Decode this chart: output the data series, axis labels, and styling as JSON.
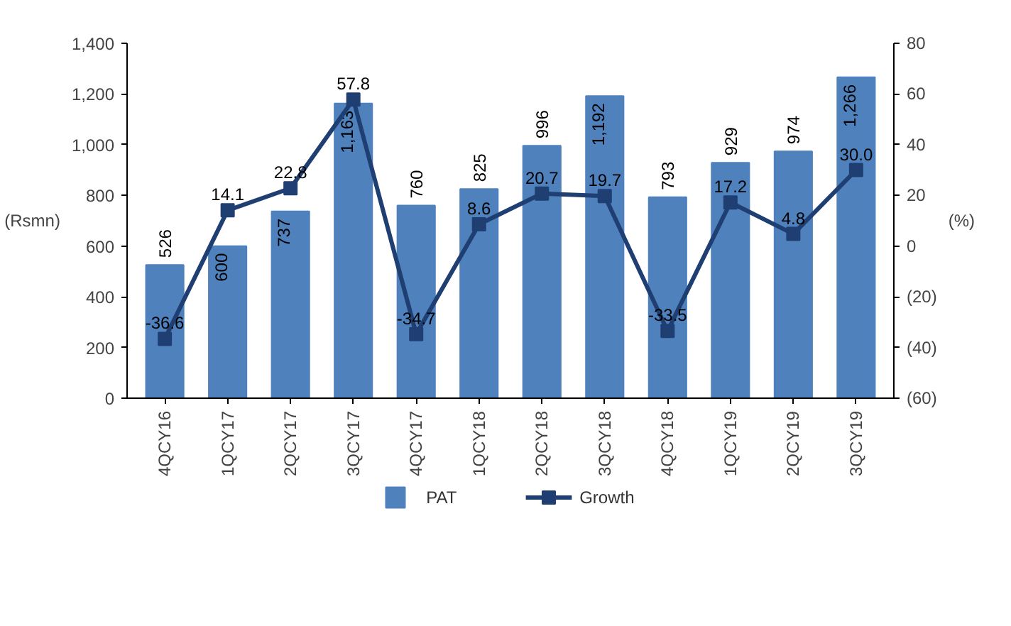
{
  "chart_data": {
    "type": "bar",
    "categories": [
      "4QCY16",
      "1QCY17",
      "2QCY17",
      "3QCY17",
      "4QCY17",
      "1QCY18",
      "2QCY18",
      "3QCY18",
      "4QCY18",
      "1QCY19",
      "2QCY19",
      "3QCY19"
    ],
    "ylabel": "(Rsmn)",
    "y2label": "(%)",
    "series": [
      {
        "name": "PAT",
        "color": "#4f81bd",
        "values": [
          526,
          600,
          737,
          1163,
          760,
          825,
          996,
          1192,
          793,
          929,
          974,
          1266
        ],
        "value_labels": [
          "526",
          "600",
          "737",
          "1,163",
          "760",
          "825",
          "996",
          "1,192",
          "793",
          "929",
          "974",
          "1,266"
        ]
      },
      {
        "name": "Growth",
        "type": "line",
        "axis": "y2",
        "color": "#1f3f73",
        "marker": "square",
        "values": [
          -36.6,
          14.1,
          22.8,
          57.8,
          -34.7,
          8.6,
          20.7,
          19.7,
          -33.5,
          17.2,
          4.8,
          30.0
        ],
        "value_labels": [
          "-36.6",
          "14.1",
          "22.8",
          "57.8",
          "-34.7",
          "8.6",
          "20.7",
          "19.7",
          "-33.5",
          "17.2",
          "4.8",
          "30.0"
        ]
      }
    ],
    "ylim": [
      0,
      1400
    ],
    "yticks": [
      0,
      {
        "value": 200,
        "label": "200"
      },
      400,
      600,
      800,
      {
        "value": 1000,
        "label": "1,000"
      },
      {
        "value": 1200,
        "label": "1,200"
      },
      {
        "value": 1400,
        "label": "1,400"
      }
    ],
    "y2lim": [
      -60,
      80
    ],
    "y2ticks": [
      {
        "value": -60,
        "label": "(60)"
      },
      {
        "value": -40,
        "label": "(40)"
      },
      {
        "value": -20,
        "label": "(20)"
      },
      0,
      20,
      40,
      60,
      80
    ],
    "legend": "bottom",
    "grid": false
  }
}
